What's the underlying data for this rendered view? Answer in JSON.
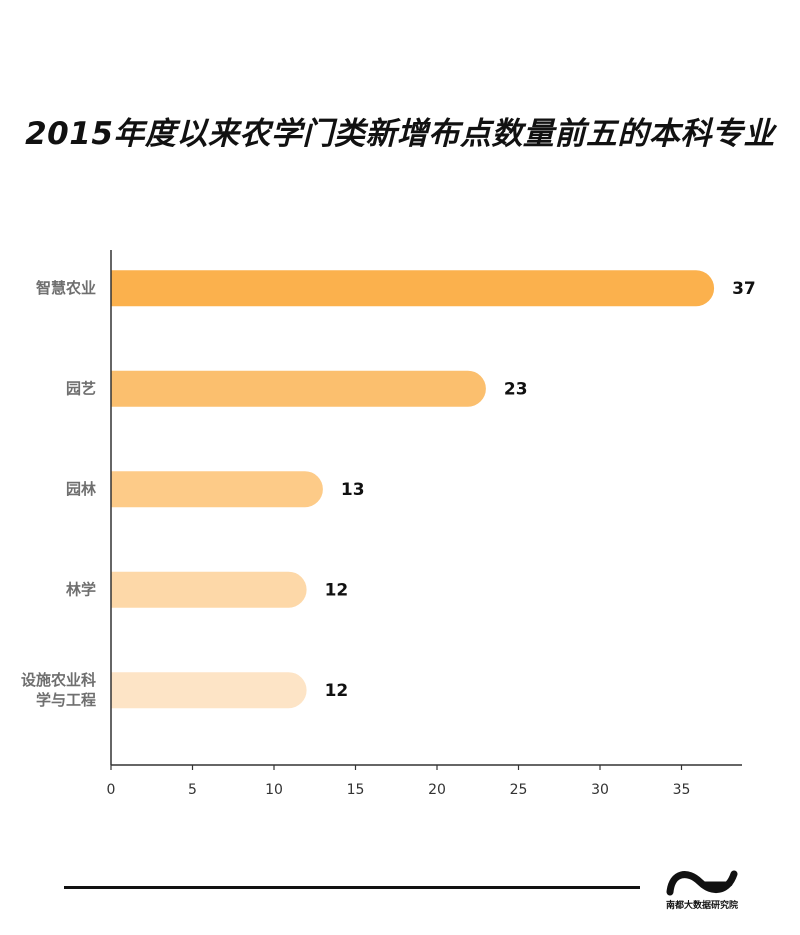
{
  "title": "2015年度以来农学门类新增布点数量前五的本科专业",
  "chart_data": {
    "type": "bar",
    "orientation": "horizontal",
    "title": "2015年度以来农学门类新增布点数量前五的本科专业",
    "categories": [
      [
        "智慧农业"
      ],
      [
        "园艺"
      ],
      [
        "园林"
      ],
      [
        "林学"
      ],
      [
        "设施农业科",
        "学与工程"
      ]
    ],
    "values": [
      37,
      23,
      13,
      12,
      12
    ],
    "bar_colors": [
      "#fbb14d",
      "#fbbf6e",
      "#fdcb88",
      "#fdd8a8",
      "#fde4c6"
    ],
    "xlim": [
      0,
      39
    ],
    "xticks": [
      "0",
      "5",
      "10",
      "15",
      "20",
      "25",
      "30",
      "35"
    ],
    "xlabel": "",
    "ylabel": "",
    "grid": false,
    "legend": "none"
  },
  "footer": {
    "logo_text": "南都大数据研究院"
  }
}
